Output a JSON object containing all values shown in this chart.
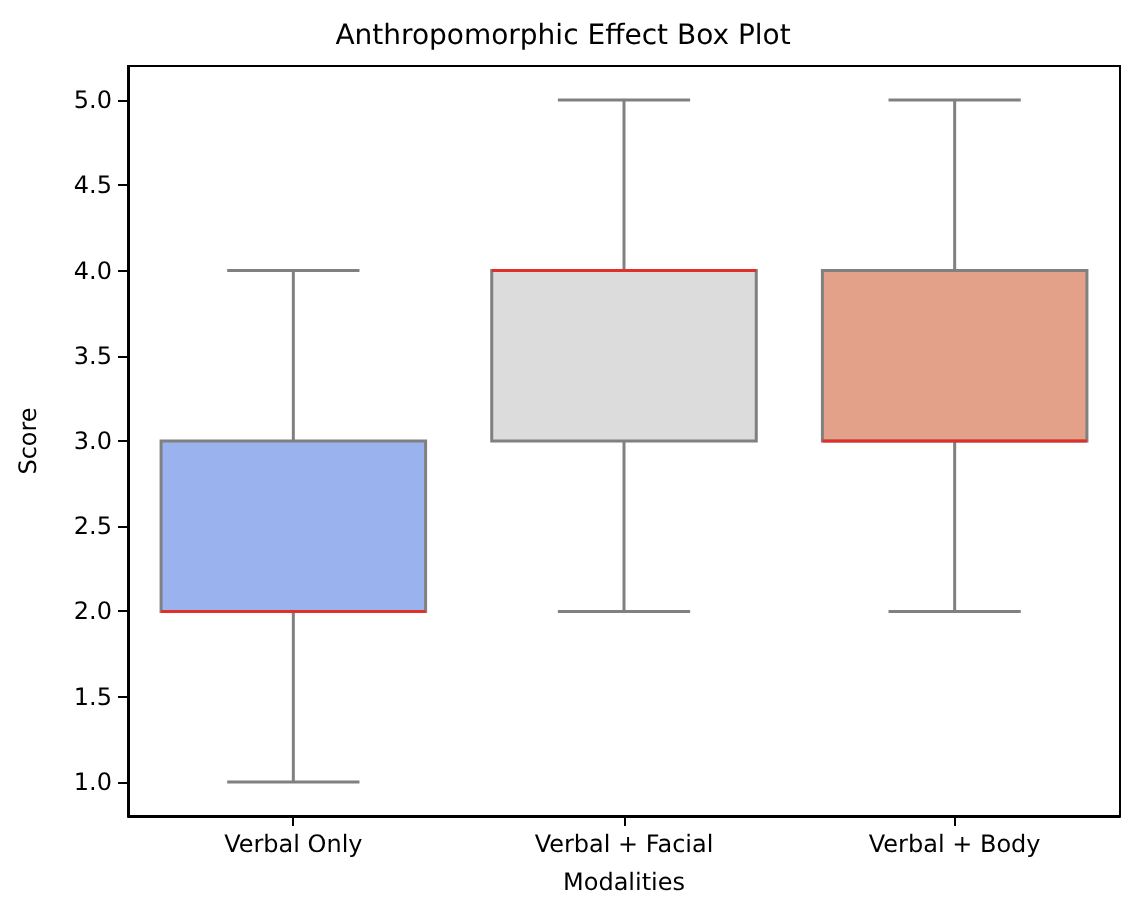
{
  "chart_data": {
    "type": "box",
    "title": "Anthropomorphic Effect Box Plot",
    "xlabel": "Modalities",
    "ylabel": "Score",
    "categories": [
      "Verbal Only",
      "Verbal + Facial",
      "Verbal + Body"
    ],
    "boxes": [
      {
        "low": 1,
        "q1": 2,
        "median": 2,
        "q3": 3,
        "high": 4
      },
      {
        "low": 2,
        "q1": 3,
        "median": 4,
        "q3": 4,
        "high": 5
      },
      {
        "low": 2,
        "q1": 3,
        "median": 3,
        "q3": 4,
        "high": 5
      }
    ],
    "colors": [
      "#9ab3ef",
      "#dcdcdc",
      "#e3a18a"
    ],
    "ylim": [
      0.8,
      5.2
    ],
    "yticks": [
      {
        "value": 1,
        "label": "1.0"
      },
      {
        "value": 1.5,
        "label": "1.5"
      },
      {
        "value": 2,
        "label": "2.0"
      },
      {
        "value": 2.5,
        "label": "2.5"
      },
      {
        "value": 3,
        "label": "3.0"
      },
      {
        "value": 3.5,
        "label": "3.5"
      },
      {
        "value": 4,
        "label": "4.0"
      },
      {
        "value": 4.5,
        "label": "4.5"
      },
      {
        "value": 5,
        "label": "5.0"
      }
    ],
    "grid": false
  }
}
